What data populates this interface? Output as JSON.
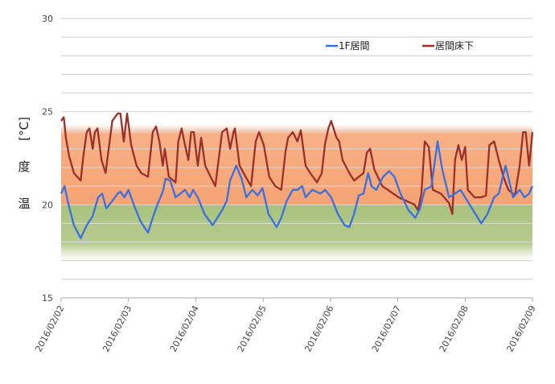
{
  "chart_data": {
    "type": "line",
    "title": "",
    "xlabel": "",
    "ylabel": [
      "温",
      "度",
      "[°C]"
    ],
    "ylim": [
      15,
      30
    ],
    "yticks": [
      15,
      20,
      25,
      30
    ],
    "grid_step": 1,
    "grid": true,
    "x_unit": "days since 2016/02/02",
    "xlim": [
      0,
      7
    ],
    "xticks": [
      "2016/02/02",
      "2016/02/03",
      "2016/02/04",
      "2016/02/05",
      "2016/02/06",
      "2016/02/07",
      "2016/02/08",
      "2016/02/09"
    ],
    "legend_position": "top-right",
    "bands": [
      {
        "name": "orange-band",
        "from": 20,
        "to": 24,
        "color": "#f6a878"
      },
      {
        "name": "green-band",
        "from": 17,
        "to": 20,
        "color": "#a9c27d"
      }
    ],
    "series": [
      {
        "name": "1F居間",
        "color": "#3b6fe0",
        "points": [
          [
            0,
            20.6
          ],
          [
            0.05,
            21.0
          ],
          [
            0.11,
            20.0
          ],
          [
            0.19,
            18.9
          ],
          [
            0.29,
            18.2
          ],
          [
            0.38,
            18.9
          ],
          [
            0.47,
            19.4
          ],
          [
            0.55,
            20.4
          ],
          [
            0.61,
            20.6
          ],
          [
            0.67,
            19.8
          ],
          [
            0.76,
            20.2
          ],
          [
            0.84,
            20.6
          ],
          [
            0.88,
            20.7
          ],
          [
            0.94,
            20.4
          ],
          [
            1.0,
            20.8
          ],
          [
            1.08,
            20.0
          ],
          [
            1.18,
            19.1
          ],
          [
            1.29,
            18.5
          ],
          [
            1.36,
            19.3
          ],
          [
            1.43,
            20.0
          ],
          [
            1.51,
            20.7
          ],
          [
            1.55,
            21.4
          ],
          [
            1.62,
            21.3
          ],
          [
            1.7,
            20.4
          ],
          [
            1.77,
            20.6
          ],
          [
            1.84,
            20.8
          ],
          [
            1.91,
            20.4
          ],
          [
            1.96,
            20.8
          ],
          [
            2.03,
            20.4
          ],
          [
            2.13,
            19.5
          ],
          [
            2.25,
            18.9
          ],
          [
            2.32,
            19.3
          ],
          [
            2.39,
            19.7
          ],
          [
            2.46,
            20.2
          ],
          [
            2.51,
            21.3
          ],
          [
            2.6,
            22.1
          ],
          [
            2.68,
            21.4
          ],
          [
            2.75,
            20.4
          ],
          [
            2.84,
            20.8
          ],
          [
            2.92,
            20.5
          ],
          [
            2.99,
            20.9
          ],
          [
            3.08,
            19.5
          ],
          [
            3.2,
            18.8
          ],
          [
            3.27,
            19.3
          ],
          [
            3.35,
            20.2
          ],
          [
            3.44,
            20.8
          ],
          [
            3.51,
            20.8
          ],
          [
            3.58,
            21.0
          ],
          [
            3.63,
            20.4
          ],
          [
            3.73,
            20.8
          ],
          [
            3.85,
            20.6
          ],
          [
            3.92,
            20.8
          ],
          [
            4.01,
            20.4
          ],
          [
            4.11,
            19.5
          ],
          [
            4.21,
            18.9
          ],
          [
            4.28,
            18.8
          ],
          [
            4.35,
            19.5
          ],
          [
            4.42,
            20.5
          ],
          [
            4.49,
            20.6
          ],
          [
            4.56,
            21.7
          ],
          [
            4.61,
            21.0
          ],
          [
            4.68,
            20.8
          ],
          [
            4.78,
            21.5
          ],
          [
            4.87,
            21.8
          ],
          [
            4.95,
            21.5
          ],
          [
            5.04,
            20.6
          ],
          [
            5.16,
            19.7
          ],
          [
            5.26,
            19.3
          ],
          [
            5.33,
            19.8
          ],
          [
            5.4,
            20.8
          ],
          [
            5.5,
            21.0
          ],
          [
            5.59,
            23.4
          ],
          [
            5.66,
            21.9
          ],
          [
            5.76,
            20.4
          ],
          [
            5.85,
            20.6
          ],
          [
            5.93,
            20.8
          ],
          [
            6.0,
            20.4
          ],
          [
            6.12,
            19.7
          ],
          [
            6.24,
            19.0
          ],
          [
            6.33,
            19.5
          ],
          [
            6.43,
            20.4
          ],
          [
            6.5,
            20.6
          ],
          [
            6.6,
            22.1
          ],
          [
            6.64,
            21.5
          ],
          [
            6.71,
            20.4
          ],
          [
            6.81,
            20.8
          ],
          [
            6.88,
            20.4
          ],
          [
            6.95,
            20.6
          ],
          [
            7.0,
            21.0
          ]
        ]
      },
      {
        "name": "居間床下",
        "color": "#9b2f2a",
        "points": [
          [
            0,
            24.5
          ],
          [
            0.04,
            24.7
          ],
          [
            0.07,
            23.6
          ],
          [
            0.12,
            22.6
          ],
          [
            0.19,
            21.7
          ],
          [
            0.29,
            21.3
          ],
          [
            0.33,
            22.6
          ],
          [
            0.38,
            23.9
          ],
          [
            0.42,
            24.1
          ],
          [
            0.47,
            23.0
          ],
          [
            0.5,
            23.9
          ],
          [
            0.54,
            24.1
          ],
          [
            0.6,
            22.4
          ],
          [
            0.66,
            21.7
          ],
          [
            0.72,
            23.4
          ],
          [
            0.76,
            24.5
          ],
          [
            0.84,
            24.9
          ],
          [
            0.88,
            24.9
          ],
          [
            0.93,
            23.4
          ],
          [
            0.98,
            24.9
          ],
          [
            1.04,
            23.2
          ],
          [
            1.12,
            22.1
          ],
          [
            1.19,
            21.7
          ],
          [
            1.29,
            21.5
          ],
          [
            1.36,
            23.9
          ],
          [
            1.41,
            24.2
          ],
          [
            1.46,
            23.4
          ],
          [
            1.51,
            22.1
          ],
          [
            1.54,
            23.0
          ],
          [
            1.6,
            21.5
          ],
          [
            1.7,
            21.2
          ],
          [
            1.74,
            23.4
          ],
          [
            1.79,
            24.1
          ],
          [
            1.84,
            23.2
          ],
          [
            1.89,
            22.4
          ],
          [
            1.93,
            23.9
          ],
          [
            1.97,
            23.9
          ],
          [
            2.03,
            22.1
          ],
          [
            2.08,
            23.6
          ],
          [
            2.14,
            22.1
          ],
          [
            2.22,
            21.5
          ],
          [
            2.29,
            21.0
          ],
          [
            2.39,
            23.9
          ],
          [
            2.46,
            24.1
          ],
          [
            2.51,
            23.0
          ],
          [
            2.56,
            23.9
          ],
          [
            2.58,
            24.1
          ],
          [
            2.65,
            22.1
          ],
          [
            2.74,
            21.5
          ],
          [
            2.82,
            21.0
          ],
          [
            2.89,
            23.4
          ],
          [
            2.94,
            23.9
          ],
          [
            3.01,
            23.2
          ],
          [
            3.09,
            21.5
          ],
          [
            3.18,
            21.0
          ],
          [
            3.27,
            20.8
          ],
          [
            3.33,
            22.8
          ],
          [
            3.37,
            23.6
          ],
          [
            3.44,
            23.9
          ],
          [
            3.51,
            23.4
          ],
          [
            3.56,
            24.0
          ],
          [
            3.63,
            22.1
          ],
          [
            3.7,
            21.7
          ],
          [
            3.8,
            21.2
          ],
          [
            3.87,
            21.7
          ],
          [
            3.92,
            23.3
          ],
          [
            3.97,
            24.1
          ],
          [
            4.01,
            24.5
          ],
          [
            4.09,
            23.6
          ],
          [
            4.13,
            23.4
          ],
          [
            4.18,
            22.4
          ],
          [
            4.28,
            21.7
          ],
          [
            4.35,
            21.3
          ],
          [
            4.49,
            21.7
          ],
          [
            4.54,
            22.8
          ],
          [
            4.59,
            23.0
          ],
          [
            4.65,
            21.9
          ],
          [
            4.77,
            21.0
          ],
          [
            4.89,
            20.7
          ],
          [
            5.01,
            20.4
          ],
          [
            5.13,
            20.2
          ],
          [
            5.25,
            20.0
          ],
          [
            5.3,
            19.7
          ],
          [
            5.35,
            20.6
          ],
          [
            5.4,
            23.4
          ],
          [
            5.46,
            23.1
          ],
          [
            5.52,
            20.8
          ],
          [
            5.64,
            20.6
          ],
          [
            5.76,
            20.1
          ],
          [
            5.81,
            19.5
          ],
          [
            5.85,
            22.4
          ],
          [
            5.9,
            23.2
          ],
          [
            5.95,
            22.4
          ],
          [
            6.0,
            23.1
          ],
          [
            6.04,
            20.8
          ],
          [
            6.14,
            20.4
          ],
          [
            6.24,
            20.4
          ],
          [
            6.31,
            20.5
          ],
          [
            6.36,
            23.2
          ],
          [
            6.43,
            23.4
          ],
          [
            6.5,
            22.4
          ],
          [
            6.57,
            21.5
          ],
          [
            6.64,
            20.8
          ],
          [
            6.74,
            20.5
          ],
          [
            6.81,
            22.1
          ],
          [
            6.86,
            23.9
          ],
          [
            6.9,
            23.9
          ],
          [
            6.95,
            22.1
          ],
          [
            7.0,
            23.9
          ]
        ]
      }
    ]
  }
}
